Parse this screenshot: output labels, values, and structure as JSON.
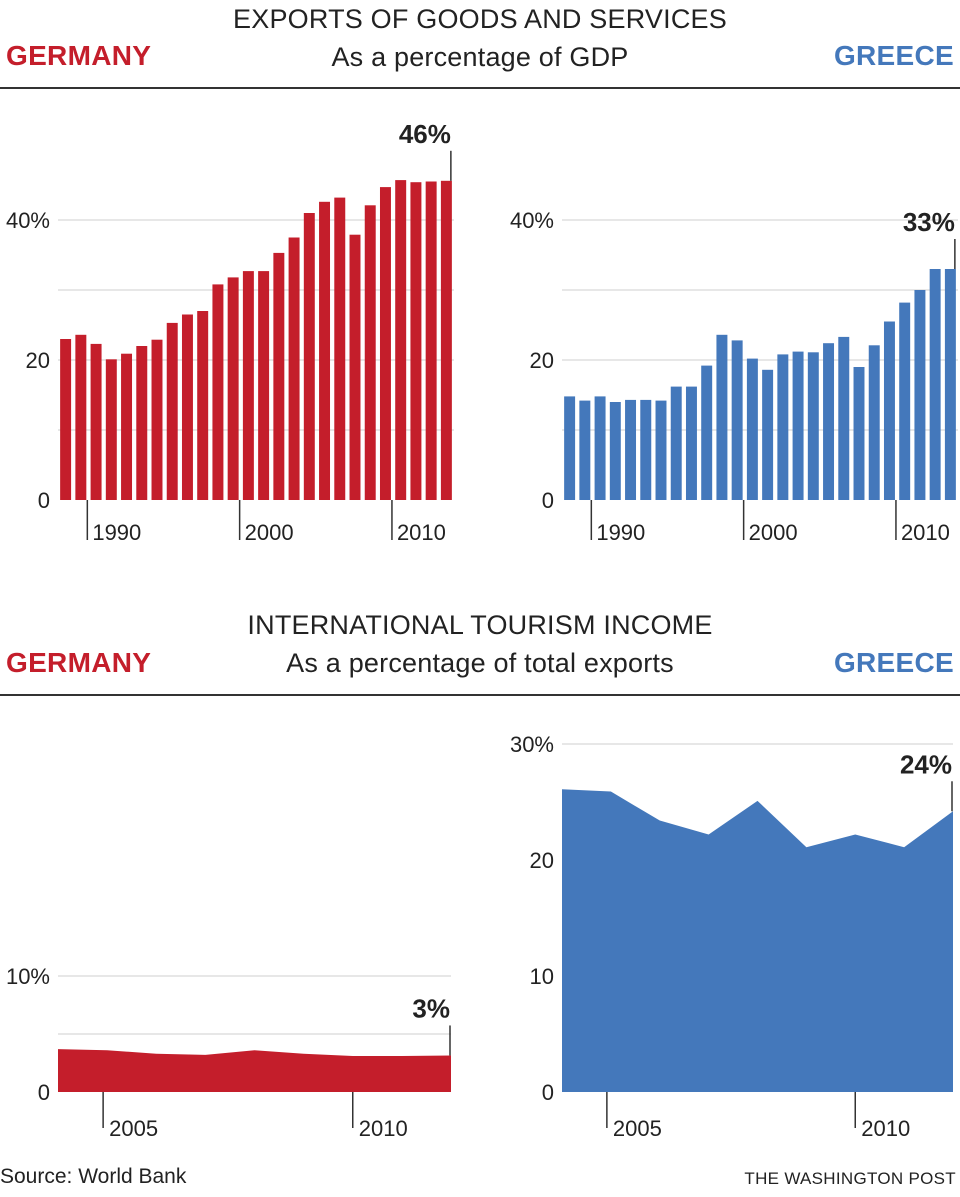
{
  "top": {
    "title": "EXPORTS OF GOODS AND SERVICES",
    "subtitle": "As a percentage of GDP",
    "left_label": "GERMANY",
    "right_label": "GREECE"
  },
  "bottom": {
    "title": "INTERNATIONAL TOURISM INCOME",
    "subtitle": "As a percentage of total exports",
    "left_label": "GERMANY",
    "right_label": "GREECE"
  },
  "footer": {
    "source": "Source: World Bank",
    "credit": "THE WASHINGTON POST"
  },
  "colors": {
    "germany": "#c41e2b",
    "greece": "#4478bb"
  },
  "chart_data": [
    {
      "id": "germany-exports",
      "type": "bar",
      "x": [
        1988,
        1989,
        1990,
        1991,
        1992,
        1993,
        1994,
        1995,
        1996,
        1997,
        1998,
        1999,
        2000,
        2001,
        2002,
        2003,
        2004,
        2005,
        2006,
        2007,
        2008,
        2009,
        2010,
        2011,
        2012,
        2013
      ],
      "values": [
        23.0,
        23.6,
        22.3,
        20.1,
        20.9,
        22.0,
        22.9,
        25.3,
        26.5,
        27.0,
        30.8,
        31.8,
        32.7,
        32.7,
        35.3,
        37.5,
        41.0,
        42.6,
        43.2,
        37.9,
        42.1,
        44.7,
        45.7,
        45.4,
        45.5,
        45.6
      ],
      "ytick_labels": [
        "0",
        "20",
        "40%"
      ],
      "ytick_values": [
        0,
        20,
        40
      ],
      "ylim": [
        0,
        46
      ],
      "xtick_labels": [
        "1990",
        "2000",
        "2010"
      ],
      "xtick_values": [
        1990,
        2000,
        2010
      ],
      "annotation": "46%",
      "color": "#c41e2b"
    },
    {
      "id": "greece-exports",
      "type": "bar",
      "x": [
        1988,
        1989,
        1990,
        1991,
        1992,
        1993,
        1994,
        1995,
        1996,
        1997,
        1998,
        1999,
        2000,
        2001,
        2002,
        2003,
        2004,
        2005,
        2006,
        2007,
        2008,
        2009,
        2010,
        2011,
        2012,
        2013
      ],
      "values": [
        14.8,
        14.2,
        14.8,
        14.0,
        14.3,
        14.3,
        14.2,
        16.2,
        16.2,
        19.2,
        23.6,
        22.8,
        20.2,
        18.6,
        20.8,
        21.2,
        21.1,
        22.4,
        23.3,
        19.0,
        22.1,
        25.5,
        28.2,
        30.0,
        33.0,
        33.0
      ],
      "ytick_labels": [
        "0",
        "20",
        "40%"
      ],
      "ytick_values": [
        0,
        20,
        40
      ],
      "ylim": [
        0,
        40
      ],
      "xtick_labels": [
        "1990",
        "2000",
        "2010"
      ],
      "xtick_values": [
        1990,
        2000,
        2010
      ],
      "annotation": "33%",
      "color": "#4478bb"
    },
    {
      "id": "germany-tourism",
      "type": "area",
      "x": [
        2004,
        2005,
        2006,
        2007,
        2008,
        2009,
        2010,
        2011,
        2012
      ],
      "values": [
        3.7,
        3.6,
        3.3,
        3.2,
        3.6,
        3.3,
        3.1,
        3.1,
        3.15
      ],
      "ytick_labels": [
        "0",
        "10%"
      ],
      "ytick_values": [
        0,
        10
      ],
      "xtick_labels": [
        "2005",
        "2010"
      ],
      "xtick_values": [
        2005,
        2010
      ],
      "annotation": "3%",
      "color": "#c41e2b"
    },
    {
      "id": "greece-tourism",
      "type": "area",
      "x": [
        2004,
        2005,
        2006,
        2007,
        2008,
        2009,
        2010,
        2011,
        2012
      ],
      "values": [
        26.1,
        25.9,
        23.4,
        22.2,
        25.1,
        21.1,
        22.2,
        21.1,
        24.2
      ],
      "ytick_labels": [
        "0",
        "10",
        "20",
        "30%"
      ],
      "ytick_values": [
        0,
        10,
        20,
        30
      ],
      "xtick_labels": [
        "2005",
        "2010"
      ],
      "xtick_values": [
        2005,
        2010
      ],
      "annotation": "24%",
      "color": "#4478bb"
    }
  ]
}
